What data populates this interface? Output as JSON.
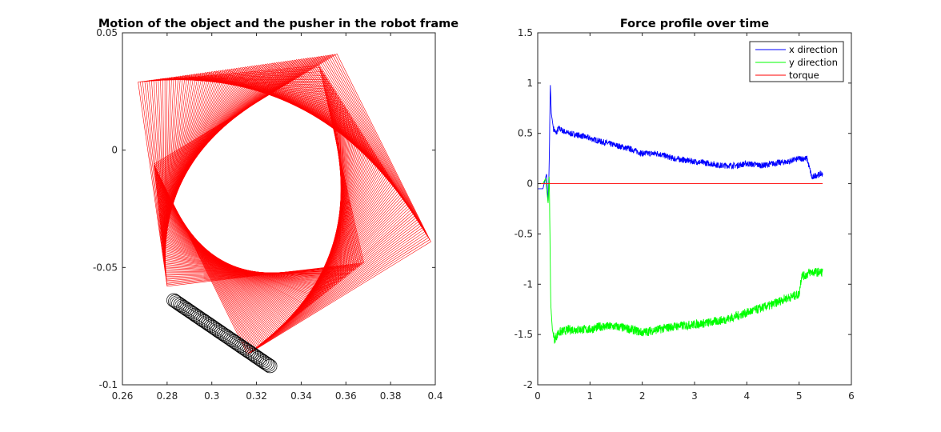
{
  "chart_data": [
    {
      "type": "line",
      "title": "Motion of the object and the pusher in the robot frame",
      "xlabel": "",
      "ylabel": "",
      "xlim": [
        0.26,
        0.4
      ],
      "ylim": [
        -0.1,
        0.05
      ],
      "x_ticks": [
        "0.26",
        "0.28",
        "0.3",
        "0.32",
        "0.34",
        "0.36",
        "0.38",
        "0.4"
      ],
      "y_ticks": [
        "-0.1",
        "-0.05",
        "0",
        "0.05"
      ],
      "grid": false,
      "object_color": "#ff0000",
      "pusher_color": "#000000",
      "object_square_start": [
        [
          0.356,
          0.041
        ],
        [
          0.398,
          -0.039
        ],
        [
          0.316,
          -0.087
        ],
        [
          0.274,
          -0.006
        ]
      ],
      "object_square_end": [
        [
          0.267,
          0.029
        ],
        [
          0.348,
          0.036
        ],
        [
          0.368,
          -0.048
        ],
        [
          0.28,
          -0.058
        ]
      ],
      "pusher_radius": 0.003,
      "pusher_path_start": [
        0.283,
        -0.064
      ],
      "pusher_path_end": [
        0.326,
        -0.092
      ],
      "series": [
        {
          "values": []
        }
      ]
    },
    {
      "type": "line",
      "title": "Force profile over time",
      "xlabel": "",
      "ylabel": "",
      "xlim": [
        0,
        6
      ],
      "ylim": [
        -2,
        1.5
      ],
      "x_ticks": [
        "0",
        "1",
        "2",
        "3",
        "4",
        "5",
        "6"
      ],
      "y_ticks": [
        "-2",
        "-1.5",
        "-1",
        "-0.5",
        "0",
        "0.5",
        "1",
        "1.5"
      ],
      "grid": false,
      "legend_position": "top-right",
      "series": [
        {
          "name": "x direction",
          "color": "#0000ff",
          "x": [
            0,
            0.1,
            0.17,
            0.2,
            0.22,
            0.24,
            0.26,
            0.3,
            0.35,
            0.4,
            0.5,
            0.6,
            0.8,
            1.0,
            1.2,
            1.5,
            1.8,
            2.0,
            2.3,
            2.6,
            3.0,
            3.3,
            3.5,
            3.8,
            4.0,
            4.3,
            4.5,
            4.8,
            5.0,
            5.15,
            5.2,
            5.25,
            5.3,
            5.45
          ],
          "y": [
            -0.05,
            -0.05,
            0.1,
            -0.2,
            0.2,
            1.0,
            0.7,
            0.55,
            0.5,
            0.55,
            0.52,
            0.5,
            0.48,
            0.45,
            0.42,
            0.38,
            0.34,
            0.3,
            0.3,
            0.25,
            0.22,
            0.2,
            0.18,
            0.18,
            0.2,
            0.18,
            0.2,
            0.22,
            0.25,
            0.25,
            0.15,
            0.05,
            0.08,
            0.1
          ]
        },
        {
          "name": "y direction",
          "color": "#00ff00",
          "x": [
            0,
            0.1,
            0.15,
            0.2,
            0.22,
            0.24,
            0.25,
            0.28,
            0.32,
            0.4,
            0.6,
            0.8,
            1.0,
            1.2,
            1.5,
            1.8,
            2.0,
            2.3,
            2.6,
            3.0,
            3.3,
            3.6,
            3.9,
            4.2,
            4.5,
            4.7,
            5.0,
            5.05,
            5.1,
            5.2,
            5.3,
            5.45
          ],
          "y": [
            0,
            0,
            0.05,
            -0.2,
            0.1,
            -0.8,
            -1.2,
            -1.45,
            -1.55,
            -1.48,
            -1.45,
            -1.45,
            -1.45,
            -1.42,
            -1.42,
            -1.45,
            -1.48,
            -1.45,
            -1.42,
            -1.4,
            -1.38,
            -1.35,
            -1.3,
            -1.25,
            -1.2,
            -1.15,
            -1.1,
            -0.9,
            -0.92,
            -0.88,
            -0.88,
            -0.88
          ]
        },
        {
          "name": "torque",
          "color": "#ff0000",
          "x": [
            0,
            5.45
          ],
          "y": [
            0,
            0
          ]
        }
      ]
    }
  ]
}
